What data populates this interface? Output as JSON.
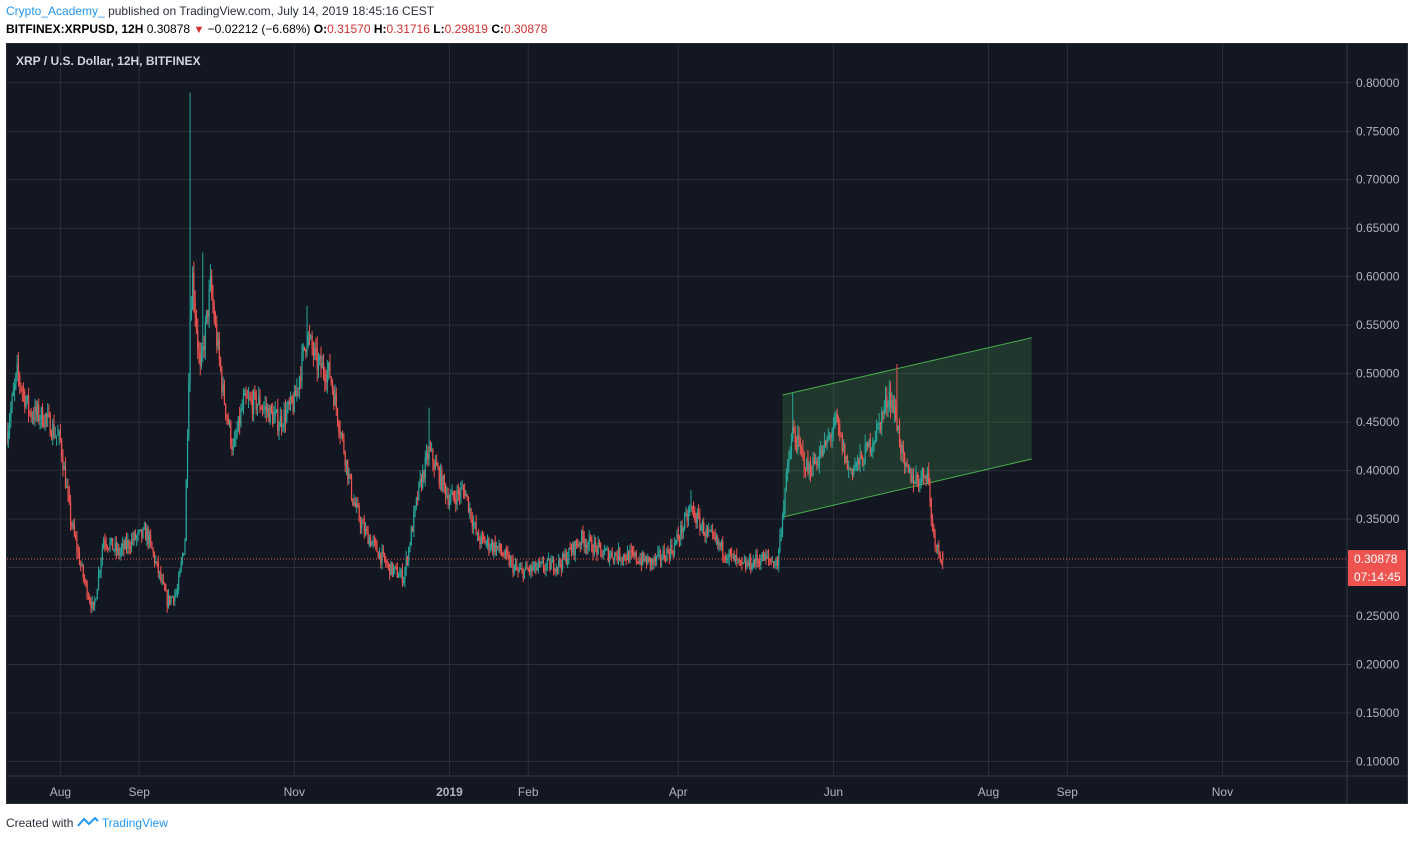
{
  "header": {
    "author": "Crypto_Academy_",
    "published": "published on TradingView.com, July 14, 2019 18:45:16 CEST",
    "symbol": "BITFINEX:XRPUSD, 12H",
    "last": "0.30878",
    "change": "−0.02212 (−6.68%)",
    "o_label": "O:",
    "o_value": "0.31570",
    "h_label": "H:",
    "h_value": "0.31716",
    "l_label": "L:",
    "l_value": "0.29819",
    "c_label": "C:",
    "c_value": "0.30878"
  },
  "footer": {
    "created_with": "Created with",
    "brand": "TradingView"
  },
  "colors": {
    "bg": "#131722",
    "up": "#26a69a",
    "down": "#ef5350",
    "grid": "#2a2e39",
    "channel": "#4caf50",
    "price_line": "#ef5350"
  },
  "chart_data": {
    "type": "candlestick",
    "title": "XRP / U.S. Dollar, 12H, BITFINEX",
    "y_ticks": [
      "0.10000",
      "0.15000",
      "0.20000",
      "0.25000",
      "0.30000",
      "0.35000",
      "0.40000",
      "0.45000",
      "0.50000",
      "0.55000",
      "0.60000",
      "0.65000",
      "0.70000",
      "0.75000",
      "0.80000"
    ],
    "ylim": [
      0.085,
      0.84
    ],
    "x_ticks": [
      {
        "label": "Aug",
        "date": "2018-08-01"
      },
      {
        "label": "Sep",
        "date": "2018-09-01"
      },
      {
        "label": "Nov",
        "date": "2018-11-01"
      },
      {
        "label": "2019",
        "date": "2019-01-01"
      },
      {
        "label": "Feb",
        "date": "2019-02-01"
      },
      {
        "label": "Apr",
        "date": "2019-04-01"
      },
      {
        "label": "Jun",
        "date": "2019-06-01"
      },
      {
        "label": "Aug",
        "date": "2019-08-01"
      },
      {
        "label": "Sep",
        "date": "2019-09-01"
      },
      {
        "label": "Nov",
        "date": "2019-11-01"
      }
    ],
    "xlim": [
      "2018-07-11",
      "2019-12-20"
    ],
    "current_price": "0.30878",
    "countdown": "07:14:45",
    "price_path": [
      [
        "2018-07-11",
        0.44
      ],
      [
        "2018-07-15",
        0.5
      ],
      [
        "2018-07-20",
        0.46
      ],
      [
        "2018-07-26",
        0.455
      ],
      [
        "2018-08-01",
        0.43
      ],
      [
        "2018-08-05",
        0.35
      ],
      [
        "2018-08-10",
        0.29
      ],
      [
        "2018-08-14",
        0.255
      ],
      [
        "2018-08-18",
        0.33
      ],
      [
        "2018-08-24",
        0.315
      ],
      [
        "2018-08-30",
        0.33
      ],
      [
        "2018-09-04",
        0.335
      ],
      [
        "2018-09-08",
        0.3
      ],
      [
        "2018-09-12",
        0.265
      ],
      [
        "2018-09-16",
        0.275
      ],
      [
        "2018-09-19",
        0.33
      ],
      [
        "2018-09-21",
        0.56
      ],
      [
        "2018-09-22",
        0.6
      ],
      [
        "2018-09-25",
        0.5
      ],
      [
        "2018-09-29",
        0.59
      ],
      [
        "2018-10-04",
        0.48
      ],
      [
        "2018-10-08",
        0.42
      ],
      [
        "2018-10-12",
        0.47
      ],
      [
        "2018-10-18",
        0.47
      ],
      [
        "2018-10-26",
        0.45
      ],
      [
        "2018-11-01",
        0.47
      ],
      [
        "2018-11-06",
        0.54
      ],
      [
        "2018-11-10",
        0.51
      ],
      [
        "2018-11-15",
        0.5
      ],
      [
        "2018-11-20",
        0.43
      ],
      [
        "2018-11-24",
        0.37
      ],
      [
        "2018-11-28",
        0.34
      ],
      [
        "2018-12-03",
        0.32
      ],
      [
        "2018-12-08",
        0.3
      ],
      [
        "2018-12-14",
        0.29
      ],
      [
        "2018-12-20",
        0.38
      ],
      [
        "2018-12-24",
        0.42
      ],
      [
        "2019-01-01",
        0.37
      ],
      [
        "2019-01-07",
        0.38
      ],
      [
        "2019-01-12",
        0.33
      ],
      [
        "2019-01-20",
        0.32
      ],
      [
        "2019-01-28",
        0.295
      ],
      [
        "2019-02-06",
        0.3
      ],
      [
        "2019-02-14",
        0.305
      ],
      [
        "2019-02-22",
        0.33
      ],
      [
        "2019-03-02",
        0.315
      ],
      [
        "2019-03-12",
        0.312
      ],
      [
        "2019-03-22",
        0.305
      ],
      [
        "2019-03-30",
        0.32
      ],
      [
        "2019-04-06",
        0.36
      ],
      [
        "2019-04-12",
        0.335
      ],
      [
        "2019-04-18",
        0.32
      ],
      [
        "2019-04-26",
        0.3
      ],
      [
        "2019-05-04",
        0.31
      ],
      [
        "2019-05-10",
        0.305
      ],
      [
        "2019-05-13",
        0.38
      ],
      [
        "2019-05-16",
        0.44
      ],
      [
        "2019-05-22",
        0.4
      ],
      [
        "2019-05-28",
        0.42
      ],
      [
        "2019-06-02",
        0.45
      ],
      [
        "2019-06-07",
        0.4
      ],
      [
        "2019-06-12",
        0.41
      ],
      [
        "2019-06-18",
        0.44
      ],
      [
        "2019-06-23",
        0.48
      ],
      [
        "2019-06-26",
        0.45
      ],
      [
        "2019-06-29",
        0.4
      ],
      [
        "2019-07-04",
        0.39
      ],
      [
        "2019-07-08",
        0.4
      ],
      [
        "2019-07-10",
        0.34
      ],
      [
        "2019-07-12",
        0.32
      ],
      [
        "2019-07-14",
        0.30878
      ]
    ],
    "spikes": [
      {
        "date": "2018-09-21",
        "high": 0.79
      },
      {
        "date": "2018-09-26",
        "high": 0.625
      },
      {
        "date": "2018-11-06",
        "high": 0.57
      },
      {
        "date": "2018-12-24",
        "high": 0.465
      },
      {
        "date": "2019-04-06",
        "high": 0.38
      },
      {
        "date": "2019-05-16",
        "high": 0.48
      },
      {
        "date": "2019-06-26",
        "high": 0.51
      }
    ],
    "channel": {
      "upper": [
        [
          "2019-05-12",
          0.478
        ],
        [
          "2019-08-18",
          0.537
        ]
      ],
      "lower": [
        [
          "2019-05-12",
          0.352
        ],
        [
          "2019-08-18",
          0.412
        ]
      ]
    }
  }
}
